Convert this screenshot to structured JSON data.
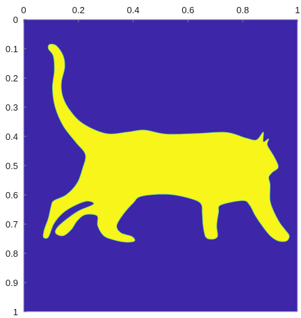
{
  "chart_data": {
    "type": "heatmap",
    "title": "",
    "xlabel": "",
    "ylabel": "",
    "xlim": [
      0,
      1
    ],
    "ylim": [
      0,
      1
    ],
    "y_reversed": true,
    "x_ticks": [
      0,
      0.2,
      0.4,
      0.6,
      0.8,
      1
    ],
    "x_tick_labels": [
      "0",
      "0.2",
      "0.4",
      "0.6",
      "0.8",
      "1"
    ],
    "y_ticks": [
      0,
      0.1,
      0.2,
      0.3,
      0.4,
      0.5,
      0.6,
      0.7,
      0.8,
      0.9,
      1
    ],
    "y_tick_labels": [
      "0",
      "0.1",
      "0.2",
      "0.3",
      "0.4",
      "0.5",
      "0.6",
      "0.7",
      "0.8",
      "0.9",
      "1"
    ],
    "grid": false,
    "colors": {
      "background_value": "#3d26a8",
      "foreground_value": "#f7f51a"
    },
    "foreground_region": {
      "shape": "walking-cat-silhouette",
      "outline": [
        [
          0.095,
          0.085
        ],
        [
          0.12,
          0.09
        ],
        [
          0.145,
          0.125
        ],
        [
          0.15,
          0.165
        ],
        [
          0.138,
          0.215
        ],
        [
          0.142,
          0.26
        ],
        [
          0.165,
          0.305
        ],
        [
          0.215,
          0.355
        ],
        [
          0.3,
          0.39
        ],
        [
          0.38,
          0.385
        ],
        [
          0.44,
          0.378
        ],
        [
          0.52,
          0.392
        ],
        [
          0.63,
          0.39
        ],
        [
          0.74,
          0.386
        ],
        [
          0.81,
          0.405
        ],
        [
          0.85,
          0.412
        ],
        [
          0.875,
          0.385
        ],
        [
          0.875,
          0.418
        ],
        [
          0.895,
          0.408
        ],
        [
          0.89,
          0.43
        ],
        [
          0.915,
          0.47
        ],
        [
          0.93,
          0.505
        ],
        [
          0.908,
          0.523
        ],
        [
          0.895,
          0.54
        ],
        [
          0.9,
          0.565
        ],
        [
          0.9,
          0.62
        ],
        [
          0.915,
          0.66
        ],
        [
          0.935,
          0.695
        ],
        [
          0.955,
          0.72
        ],
        [
          0.97,
          0.74
        ],
        [
          0.96,
          0.758
        ],
        [
          0.93,
          0.758
        ],
        [
          0.9,
          0.74
        ],
        [
          0.87,
          0.705
        ],
        [
          0.845,
          0.67
        ],
        [
          0.825,
          0.635
        ],
        [
          0.8,
          0.62
        ],
        [
          0.72,
          0.635
        ],
        [
          0.712,
          0.66
        ],
        [
          0.705,
          0.705
        ],
        [
          0.708,
          0.742
        ],
        [
          0.69,
          0.752
        ],
        [
          0.665,
          0.745
        ],
        [
          0.655,
          0.705
        ],
        [
          0.652,
          0.665
        ],
        [
          0.645,
          0.628
        ],
        [
          0.59,
          0.608
        ],
        [
          0.52,
          0.598
        ],
        [
          0.43,
          0.605
        ],
        [
          0.4,
          0.628
        ],
        [
          0.365,
          0.665
        ],
        [
          0.34,
          0.705
        ],
        [
          0.355,
          0.73
        ],
        [
          0.395,
          0.742
        ],
        [
          0.405,
          0.758
        ],
        [
          0.37,
          0.762
        ],
        [
          0.32,
          0.752
        ],
        [
          0.29,
          0.738
        ],
        [
          0.27,
          0.705
        ],
        [
          0.268,
          0.672
        ],
        [
          0.225,
          0.668
        ],
        [
          0.195,
          0.69
        ],
        [
          0.175,
          0.718
        ],
        [
          0.145,
          0.74
        ],
        [
          0.118,
          0.733
        ],
        [
          0.12,
          0.715
        ],
        [
          0.15,
          0.688
        ],
        [
          0.2,
          0.655
        ],
        [
          0.255,
          0.632
        ],
        [
          0.23,
          0.622
        ],
        [
          0.18,
          0.64
        ],
        [
          0.14,
          0.665
        ],
        [
          0.11,
          0.7
        ],
        [
          0.09,
          0.745
        ],
        [
          0.072,
          0.745
        ],
        [
          0.075,
          0.72
        ],
        [
          0.09,
          0.68
        ],
        [
          0.1,
          0.64
        ],
        [
          0.11,
          0.62
        ],
        [
          0.155,
          0.6
        ],
        [
          0.195,
          0.56
        ],
        [
          0.215,
          0.51
        ],
        [
          0.225,
          0.462
        ],
        [
          0.19,
          0.42
        ],
        [
          0.145,
          0.365
        ],
        [
          0.115,
          0.3
        ],
        [
          0.105,
          0.235
        ],
        [
          0.112,
          0.175
        ],
        [
          0.108,
          0.125
        ],
        [
          0.09,
          0.1
        ]
      ]
    }
  }
}
